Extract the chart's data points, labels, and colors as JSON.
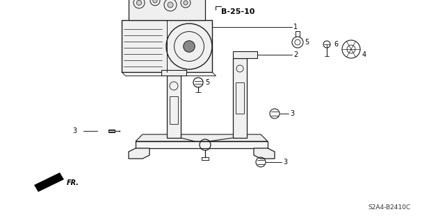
{
  "bg_color": "#ffffff",
  "line_color": "#1a1a1a",
  "page_ref": "B-25-10",
  "part_code": "S2A4-B2410C",
  "fr_label": "FR.",
  "fig_width": 6.4,
  "fig_height": 3.19,
  "dpi": 100,
  "lw_main": 1.0,
  "lw_thin": 0.6,
  "label_fs": 7,
  "ref_fs": 8
}
